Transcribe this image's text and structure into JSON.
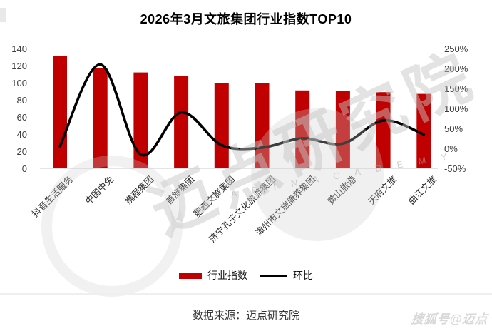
{
  "title": "2026年3月文旅集团行业指数TOP10",
  "chart_data": {
    "type": "bar",
    "subtype": "combo-bar-line",
    "title": "2026年3月文旅集团行业指数TOP10",
    "categories": [
      "抖音生活服务",
      "中国中免",
      "携程集团",
      "首旅集团",
      "肥西文旅集团",
      "济宁孔子文化旅游集团",
      "漳州市文旅康养集团",
      "黄山旅游",
      "天府文旅",
      "曲江文旅"
    ],
    "series": [
      {
        "name": "行业指数",
        "kind": "bar",
        "axis": "left",
        "color": "#c00000",
        "values": [
          131,
          117,
          112,
          108,
          100,
          100,
          91,
          90,
          89,
          87
        ]
      },
      {
        "name": "环比",
        "kind": "line",
        "axis": "right",
        "color": "#000000",
        "values_pct": [
          5,
          210,
          -15,
          90,
          8,
          2,
          25,
          12,
          70,
          35
        ]
      }
    ],
    "left_axis": {
      "min": 0,
      "max": 140,
      "step": 20,
      "tick_labels": [
        "140",
        "120",
        "100",
        "80",
        "60",
        "40",
        "20",
        "0"
      ]
    },
    "right_axis": {
      "min_pct": -50,
      "max_pct": 250,
      "step_pct": 50,
      "tick_labels": [
        "250%",
        "200%",
        "150%",
        "100%",
        "50%",
        "0%",
        "-50%"
      ]
    },
    "grid": "none",
    "legend_position": "bottom"
  },
  "legend": {
    "bar_label": "行业指数",
    "line_label": "环比"
  },
  "source": "数据来源：迈点研究院",
  "watermark": {
    "main_text": "迈点研究院",
    "letters": "E A D I N   A C A D E M Y",
    "corner_text": "搜狐号@迈点"
  },
  "colors": {
    "bar": "#c00000",
    "line": "#000000",
    "axis_line": "#dcdcdc",
    "watermark_gray": "#c5c5c5"
  }
}
